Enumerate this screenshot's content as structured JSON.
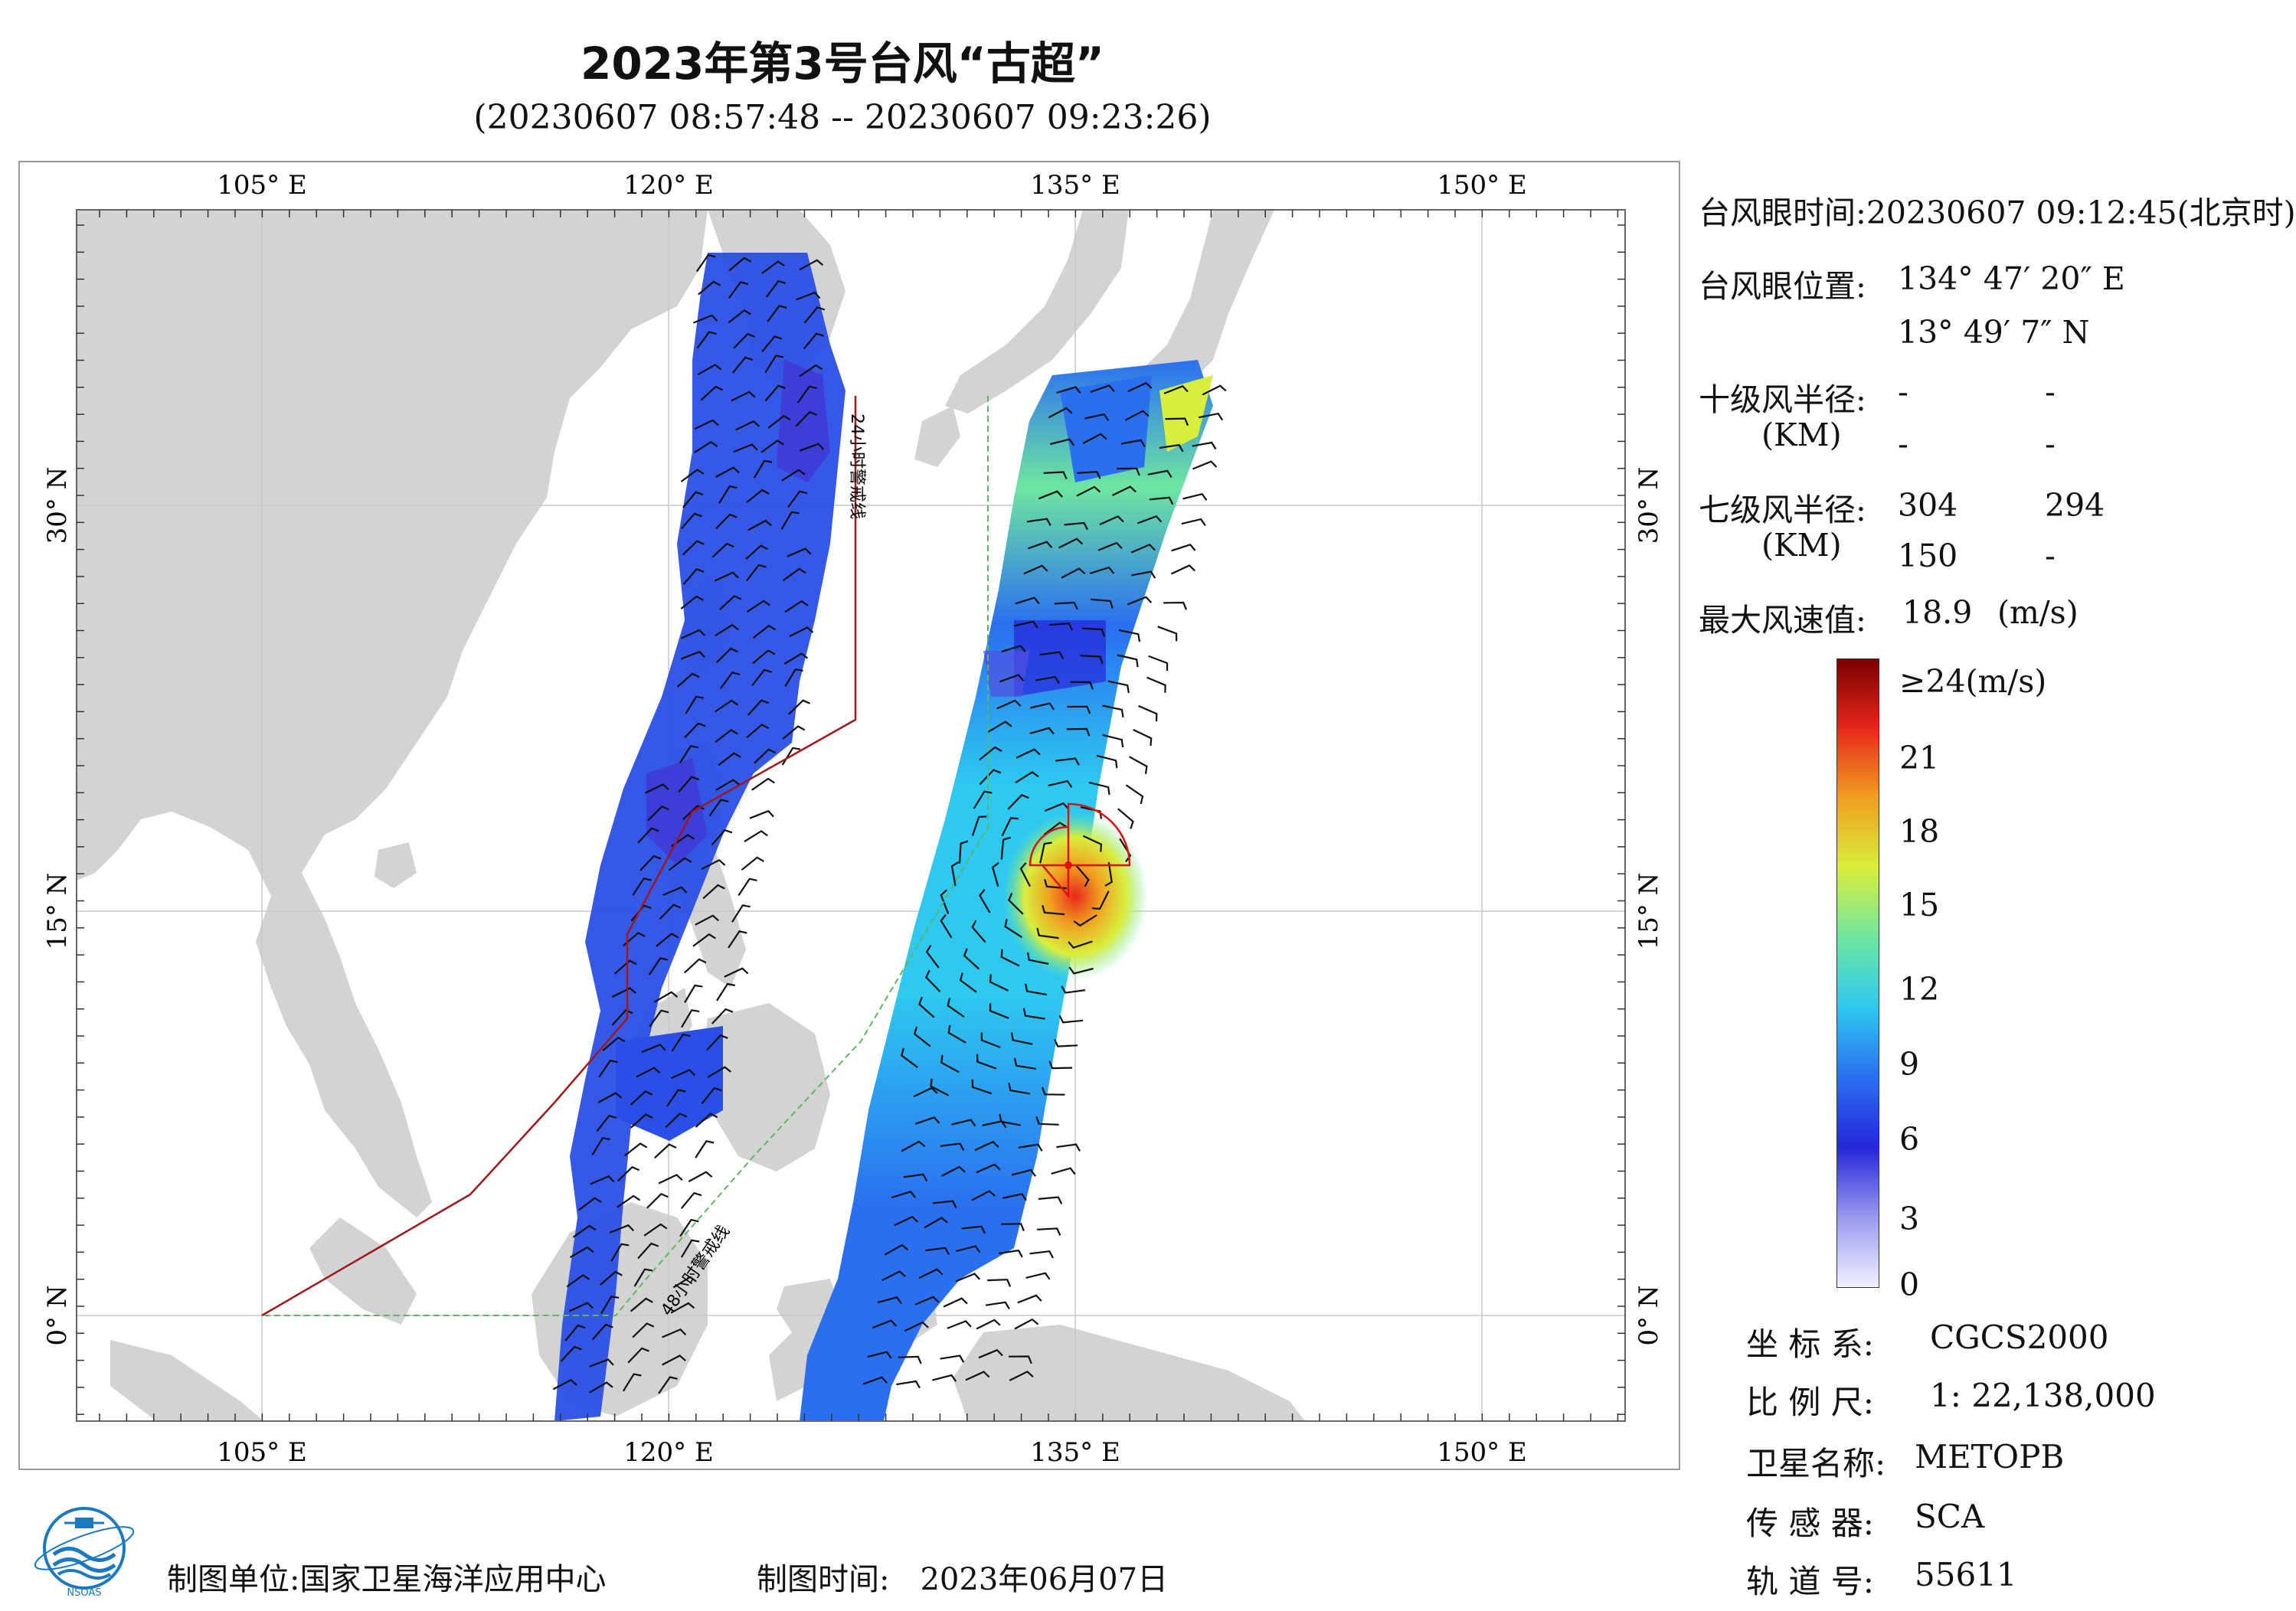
{
  "title": "2023年第3号台风“古超”",
  "subtitle": "(20230607 08:57:48 -- 20230607 09:23:26)",
  "map": {
    "top_lon_labels": [
      "105° E",
      "120° E",
      "135° E",
      "150° E"
    ],
    "bottom_lon_labels": [
      "105° E",
      "120° E",
      "135° E",
      "150° E"
    ],
    "left_lat_labels": [
      "30° N",
      "15° N",
      "0° N"
    ],
    "right_lat_labels": [
      "30° N",
      "15° N",
      "0° N"
    ],
    "warning_line_24h": "24小时警戒线",
    "warning_line_48h": "48小时警戒线",
    "colors": {
      "land": "#d3d3d3",
      "sea": "#ffffff",
      "warning_24h": "#a01818",
      "warning_48h": "#5cb85c",
      "wind_radius": "#e01010"
    }
  },
  "info": {
    "eye_time_label": "台风眼时间:",
    "eye_time_value": "20230607 09:12:45(北京时)",
    "eye_pos_label": "台风眼位置:",
    "eye_lon": "134° 47′ 20″ E",
    "eye_lat": "13° 49′ 7″ N",
    "r10_label": "十级风半径:",
    "r10_unit": "(KM)",
    "r10_values": [
      "-",
      "-",
      "-",
      "-"
    ],
    "r7_label": "七级风半径:",
    "r7_unit": "(KM)",
    "r7_values": [
      "304",
      "294",
      "150",
      "-"
    ],
    "max_wind_label": "最大风速值:",
    "max_wind_value": "18.9",
    "max_wind_unit": "(m/s)"
  },
  "colorbar": {
    "labels": [
      "≥24(m/s)",
      "21",
      "18",
      "15",
      "12",
      "9",
      "6",
      "3",
      "0"
    ],
    "stops": [
      "#f0f0ff",
      "#9a9aef",
      "#2626d9",
      "#2a6ff0",
      "#2ec8f0",
      "#6ee6a0",
      "#d8ee3c",
      "#f0a020",
      "#e8281c",
      "#7a0000"
    ]
  },
  "meta": {
    "crs_label": "坐 标 系:",
    "crs_value": "CGCS2000",
    "scale_label": "比 例 尺:",
    "scale_value": "1: 22,138,000",
    "sat_label": "卫星名称:",
    "sat_value": "METOPB",
    "sensor_label": "传 感 器:",
    "sensor_value": "SCA",
    "orbit_label": "轨 道 号:",
    "orbit_value": "55611"
  },
  "footer": {
    "org_label": "制图单位:",
    "org_value": "国家卫星海洋应用中心",
    "date_label": "制图时间:",
    "date_value": "2023年06月07日"
  },
  "logo": {
    "text": "NSOAS"
  }
}
